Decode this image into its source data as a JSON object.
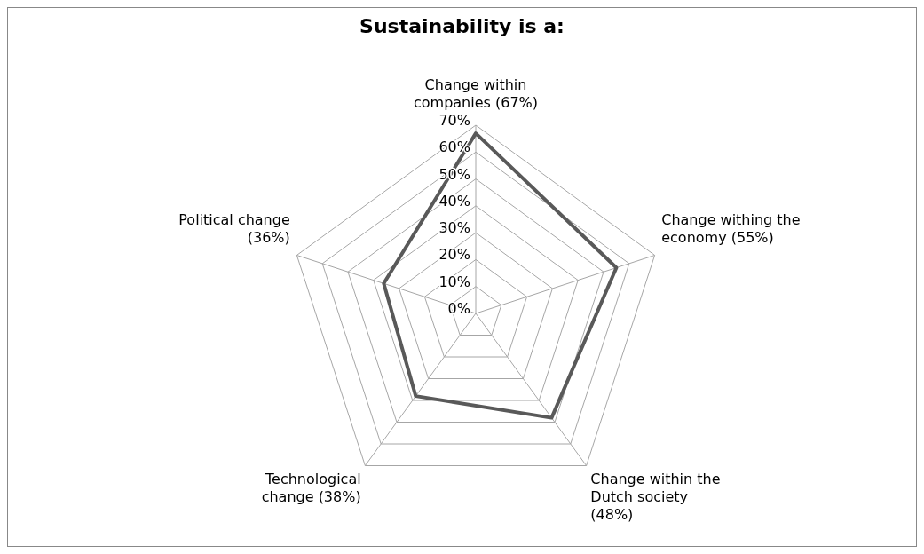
{
  "chart_data": {
    "type": "radar",
    "title": "Sustainability is a:",
    "categories": [
      "Change within companies (67%)",
      "Change withing the economy (55%)",
      "Change within the Dutch society (48%)",
      "Technological change (38%)",
      "Political change (36%)"
    ],
    "series": [
      {
        "color": "#595959",
        "values": [
          67,
          55,
          48,
          38,
          36
        ]
      }
    ],
    "ylim": [
      0,
      70
    ],
    "yticks": [
      {
        "value": 0,
        "label": "0%"
      },
      {
        "value": 10,
        "label": "10%"
      },
      {
        "value": 20,
        "label": "20%"
      },
      {
        "value": 30,
        "label": "30%"
      },
      {
        "value": 40,
        "label": "40%"
      },
      {
        "value": 50,
        "label": "50%"
      },
      {
        "value": 60,
        "label": "60%"
      },
      {
        "value": 70,
        "label": "70%"
      }
    ],
    "grid": true,
    "legend": false
  }
}
